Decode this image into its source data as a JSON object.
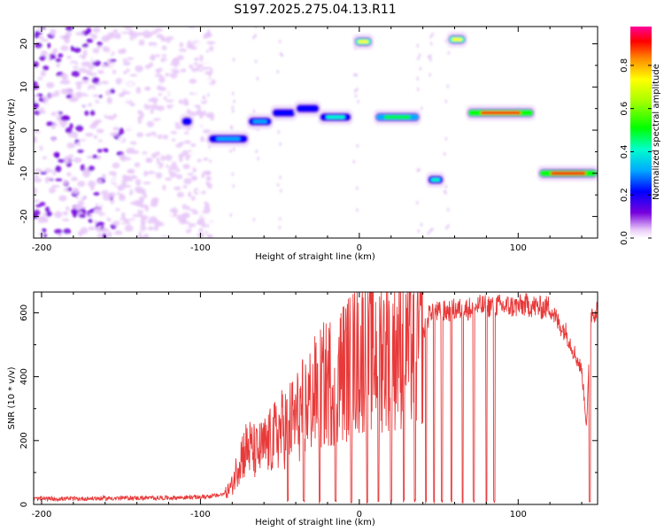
{
  "chart_data": [
    {
      "type": "heatmap",
      "title": "S197.2025.275.04.13.R11",
      "xlabel": "Height of straight line (km)",
      "ylabel": "Frequency (Hz)",
      "xlim": [
        -205,
        150
      ],
      "ylim": [
        -25,
        24
      ],
      "x_ticks": [
        -200,
        -100,
        0,
        100
      ],
      "y_ticks": [
        -20,
        -10,
        0,
        10,
        20
      ],
      "colorbar": {
        "label": "Normalized spectral amplitude",
        "range": [
          0.0,
          0.98
        ],
        "ticks": [
          "0.0",
          "0.2",
          "0.4",
          "0.6",
          "0.8"
        ],
        "tick_values": [
          0.0,
          0.2,
          0.4,
          0.6,
          0.8
        ]
      },
      "noise_region": {
        "x_range": [
          -205,
          -92
        ],
        "y_range": [
          -25,
          24
        ]
      },
      "features": [
        {
          "x_start": -112,
          "x_end": -105,
          "freq": 2,
          "amplitude": 0.3
        },
        {
          "x_start": -95,
          "x_end": -70,
          "freq": -2,
          "amplitude": 0.35
        },
        {
          "x_start": -70,
          "x_end": -55,
          "freq": 2,
          "amplitude": 0.35
        },
        {
          "x_start": -55,
          "x_end": -40,
          "freq": 4,
          "amplitude": 0.3
        },
        {
          "x_start": -40,
          "x_end": -25,
          "freq": 5,
          "amplitude": 0.25
        },
        {
          "x_start": -25,
          "x_end": -5,
          "freq": 3,
          "amplitude": 0.45
        },
        {
          "x_start": -3,
          "x_end": 8,
          "freq": 20.5,
          "amplitude": 0.75
        },
        {
          "x_start": 10,
          "x_end": 38,
          "freq": 3,
          "amplitude": 0.6
        },
        {
          "x_start": 43,
          "x_end": 53,
          "freq": -11.5,
          "amplitude": 0.45
        },
        {
          "x_start": 56,
          "x_end": 67,
          "freq": 21,
          "amplitude": 0.75
        },
        {
          "x_start": 68,
          "x_end": 110,
          "freq": 4,
          "amplitude": 0.95
        },
        {
          "x_start": 113,
          "x_end": 150,
          "freq": -10,
          "amplitude": 0.95
        }
      ]
    },
    {
      "type": "line",
      "xlabel": "Height of straight line (km)",
      "ylabel": "SNR (10 * v/v)",
      "xlim": [
        -205,
        150
      ],
      "ylim": [
        0,
        665
      ],
      "x_ticks": [
        -200,
        -100,
        0,
        100
      ],
      "y_ticks": [
        0,
        200,
        400,
        600
      ],
      "series": [
        {
          "name": "SNR",
          "color": "#e83a3a",
          "x": [
            -205,
            -180,
            -150,
            -120,
            -100,
            -90,
            -85,
            -80,
            -75,
            -70,
            -65,
            -60,
            -55,
            -50,
            -45,
            -40,
            -35,
            -30,
            -25,
            -20,
            -15,
            -10,
            -5,
            0,
            5,
            10,
            15,
            20,
            25,
            30,
            35,
            40,
            45,
            50,
            55,
            60,
            65,
            70,
            75,
            80,
            85,
            90,
            95,
            100,
            105,
            110,
            115,
            120,
            125,
            130,
            135,
            140,
            143,
            146,
            150
          ],
          "values": [
            15,
            15,
            17,
            18,
            20,
            25,
            30,
            60,
            150,
            180,
            160,
            180,
            200,
            230,
            250,
            270,
            300,
            330,
            360,
            380,
            400,
            420,
            440,
            460,
            480,
            480,
            490,
            500,
            500,
            520,
            500,
            530,
            610,
            600,
            605,
            610,
            610,
            615,
            620,
            620,
            625,
            620,
            620,
            620,
            625,
            620,
            615,
            620,
            570,
            540,
            480,
            420,
            250,
            600,
            610
          ]
        }
      ],
      "dropouts": [
        -45,
        -35,
        -25,
        -15,
        -5,
        5,
        12,
        20,
        28,
        35,
        42,
        47,
        52,
        58,
        65,
        72,
        80,
        85,
        145
      ]
    }
  ]
}
